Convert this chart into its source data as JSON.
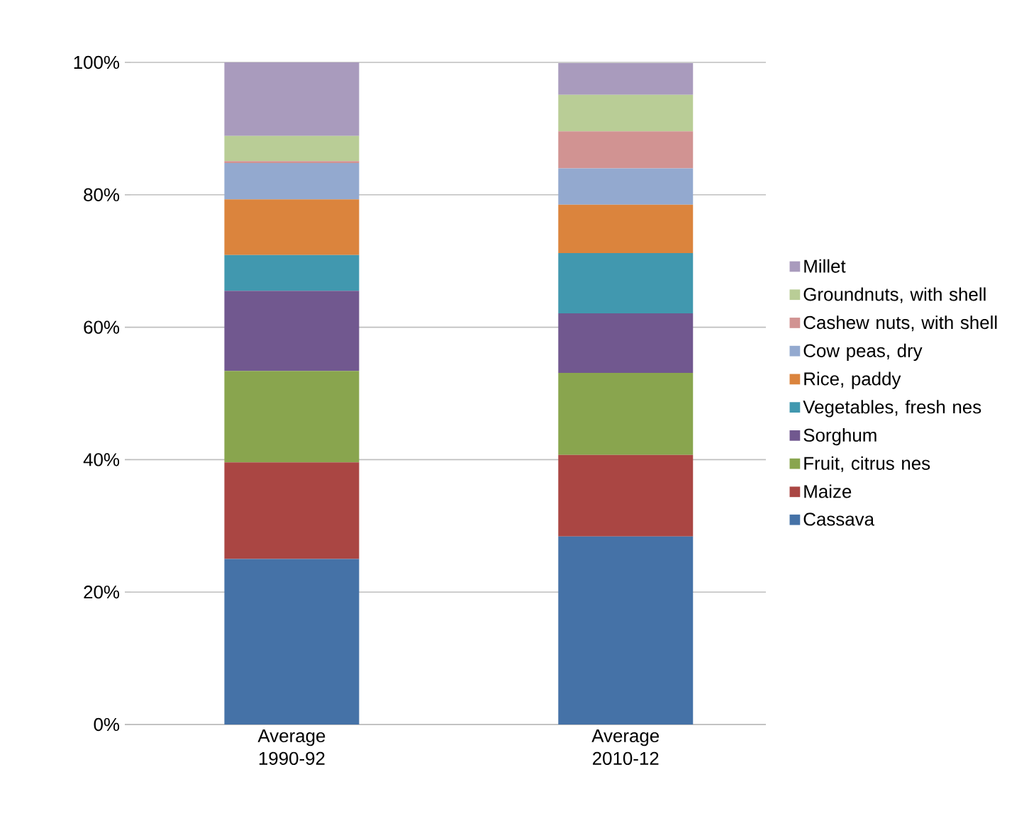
{
  "chart_data": {
    "type": "bar",
    "stacked": true,
    "categories": [
      "Average 1990-92",
      "Average 2010-12"
    ],
    "series": [
      {
        "name": "Cassava",
        "color": "#4572a7",
        "values": [
          25.0,
          28.4
        ]
      },
      {
        "name": "Maize",
        "color": "#aa4643",
        "values": [
          14.6,
          12.3
        ]
      },
      {
        "name": "Fruit, citrus nes",
        "color": "#89a54e",
        "values": [
          13.8,
          12.4
        ]
      },
      {
        "name": "Sorghum",
        "color": "#71588f",
        "values": [
          12.1,
          9.0
        ]
      },
      {
        "name": "Vegetables, fresh nes",
        "color": "#4198af",
        "values": [
          5.4,
          9.1
        ]
      },
      {
        "name": "Rice, paddy",
        "color": "#db843d",
        "values": [
          8.4,
          7.3
        ]
      },
      {
        "name": "Cow peas, dry",
        "color": "#93a9cf",
        "values": [
          5.5,
          5.5
        ]
      },
      {
        "name": "Cashew nuts, with shell",
        "color": "#d19392",
        "values": [
          0.3,
          5.6
        ]
      },
      {
        "name": "Groundnuts, with shell",
        "color": "#b9cd96",
        "values": [
          3.8,
          5.5
        ]
      },
      {
        "name": "Millet",
        "color": "#a99bbd",
        "values": [
          11.1,
          4.8
        ]
      }
    ],
    "ylim": [
      0,
      100
    ],
    "yticks": [
      {
        "value": 0,
        "label": "0%"
      },
      {
        "value": 20,
        "label": "20%"
      },
      {
        "value": 40,
        "label": "40%"
      },
      {
        "value": 60,
        "label": "60%"
      },
      {
        "value": 80,
        "label": "80%"
      },
      {
        "value": 100,
        "label": "100%"
      }
    ],
    "grid": "y",
    "legend": "right"
  }
}
